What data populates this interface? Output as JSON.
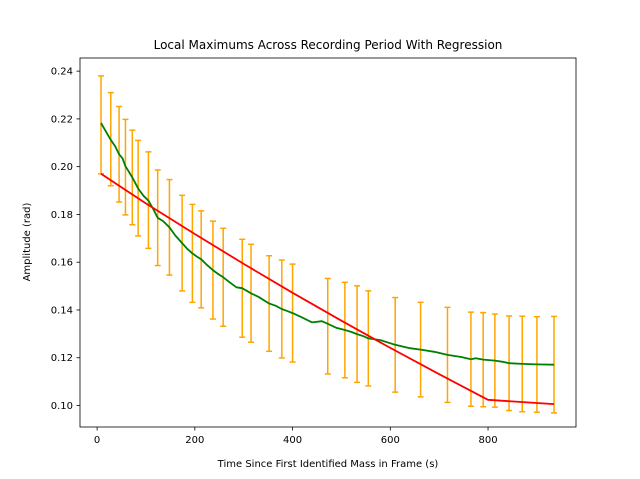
{
  "chart_data": {
    "type": "line",
    "title": "Local Maximums Across Recording Period With Regression",
    "xlabel": "Time Since First Identified Mass in Frame (s)",
    "ylabel": "Amplitude (rad)",
    "xlim": [
      -35,
      980
    ],
    "ylim": [
      0.091,
      0.2455
    ],
    "xticks": [
      0,
      200,
      400,
      600,
      800
    ],
    "yticks": [
      0.1,
      0.12,
      0.14,
      0.16,
      0.18,
      0.2,
      0.22,
      0.24
    ],
    "ytick_labels": [
      "0.10",
      "0.12",
      "0.14",
      "0.16",
      "0.18",
      "0.20",
      "0.22",
      "0.24"
    ],
    "grid": false,
    "legend": "none",
    "series": [
      {
        "kind": "errorbar",
        "color": "#FFA500",
        "x": [
          8,
          28,
          45,
          58,
          72,
          84,
          105,
          124,
          148,
          174,
          195,
          213,
          237,
          258,
          297,
          315,
          352,
          378,
          400,
          472,
          507,
          532,
          555,
          610,
          662,
          717,
          765,
          790,
          814,
          843,
          870,
          900,
          935
        ],
        "y": [
          0.2175,
          0.2115,
          0.2052,
          0.1998,
          0.1955,
          0.191,
          0.186,
          0.1786,
          0.1746,
          0.168,
          0.1637,
          0.1612,
          0.1567,
          0.1537,
          0.1491,
          0.147,
          0.1427,
          0.1404,
          0.1387,
          0.1332,
          0.1316,
          0.1299,
          0.1281,
          0.1254,
          0.1234,
          0.1212,
          0.1194,
          0.1192,
          0.1188,
          0.1177,
          0.1174,
          0.1172,
          0.1171
        ],
        "err": [
          0.0205,
          0.0195,
          0.02,
          0.02,
          0.0198,
          0.02,
          0.0202,
          0.02,
          0.02,
          0.02,
          0.0205,
          0.0203,
          0.0205,
          0.0205,
          0.0205,
          0.0205,
          0.02,
          0.0205,
          0.0205,
          0.02,
          0.02,
          0.0202,
          0.0199,
          0.0198,
          0.0198,
          0.0199,
          0.0197,
          0.0197,
          0.0195,
          0.0198,
          0.02,
          0.02,
          0.0202
        ]
      },
      {
        "kind": "line",
        "color": "#008000",
        "x": [
          8,
          20,
          28,
          37,
          45,
          52,
          58,
          66,
          72,
          84,
          95,
          105,
          115,
          124,
          135,
          148,
          160,
          174,
          185,
          195,
          205,
          213,
          225,
          237,
          248,
          258,
          270,
          285,
          297,
          315,
          330,
          352,
          365,
          378,
          390,
          400,
          420,
          440,
          460,
          472,
          490,
          507,
          520,
          532,
          545,
          555,
          580,
          610,
          640,
          662,
          690,
          717,
          745,
          765,
          775,
          790,
          814,
          830,
          843,
          870,
          900,
          935
        ],
        "y": [
          0.2183,
          0.214,
          0.2112,
          0.2085,
          0.2052,
          0.2035,
          0.2002,
          0.1975,
          0.1955,
          0.1908,
          0.1878,
          0.1858,
          0.1822,
          0.1786,
          0.1772,
          0.1746,
          0.1712,
          0.168,
          0.1655,
          0.1637,
          0.1622,
          0.1612,
          0.1588,
          0.1567,
          0.155,
          0.1537,
          0.1518,
          0.1495,
          0.1491,
          0.147,
          0.1455,
          0.1427,
          0.1418,
          0.1404,
          0.1395,
          0.1387,
          0.1368,
          0.1348,
          0.1353,
          0.1342,
          0.1325,
          0.1316,
          0.1308,
          0.1299,
          0.129,
          0.1281,
          0.1274,
          0.1254,
          0.124,
          0.1234,
          0.1225,
          0.1212,
          0.1203,
          0.1194,
          0.1198,
          0.1192,
          0.1188,
          0.1183,
          0.1177,
          0.1174,
          0.1172,
          0.1171
        ]
      },
      {
        "kind": "line",
        "color": "#FF0000",
        "x": [
          8,
          100,
          200,
          300,
          400,
          500,
          600,
          700,
          800,
          935
        ],
        "y": [
          0.197,
          0.1846,
          0.1718,
          0.1593,
          0.1472,
          0.1355,
          0.1241,
          0.1131,
          0.1024,
          0.1006
        ]
      }
    ]
  }
}
